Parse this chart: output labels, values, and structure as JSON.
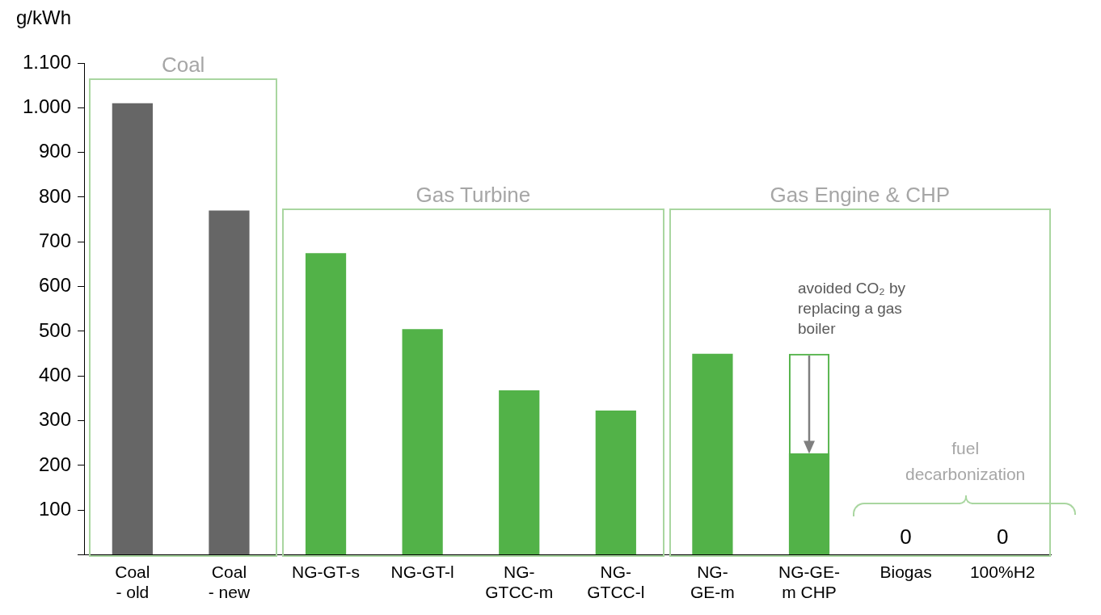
{
  "chart_data": {
    "type": "bar",
    "ylabel": "g/kWh",
    "categories": [
      "Coal\n- old",
      "Coal\n- new",
      "NG-GT-s",
      "NG-GT-l",
      "NG-\nGTCC-m",
      "NG-\nGTCC-l",
      "NG-\nGE-m",
      "NG-GE-\nm CHP",
      "Biogas",
      "100%H2"
    ],
    "series": [
      {
        "colors": [
          "#666666",
          "#666666",
          "#52b248",
          "#52b248",
          "#52b248",
          "#52b248",
          "#52b248",
          "#52b248",
          "#52b248",
          "#52b248"
        ],
        "values": [
          1010,
          770,
          675,
          505,
          368,
          323,
          450,
          227,
          0,
          0
        ],
        "value_labels": [
          null,
          null,
          null,
          null,
          null,
          null,
          null,
          null,
          "0",
          "0"
        ]
      },
      {
        "color": "#52b248",
        "values": [
          null,
          null,
          null,
          null,
          null,
          null,
          null,
          223,
          null,
          null
        ]
      }
    ],
    "stacked": true,
    "ylim": [
      0,
      1100
    ],
    "yticks": [
      {
        "value": 0,
        "label": null
      },
      100,
      200,
      300,
      400,
      500,
      600,
      700,
      800,
      900,
      {
        "value": 1000,
        "label": "1.000"
      },
      {
        "value": 1100,
        "label": "1.100"
      }
    ],
    "grid": false,
    "legend": false,
    "annotations": [
      "Coal",
      "Gas Turbine",
      "Gas Engine & CHP",
      "avoided CO₂ by replacing a gas boiler",
      "fuel decarbonization"
    ]
  }
}
